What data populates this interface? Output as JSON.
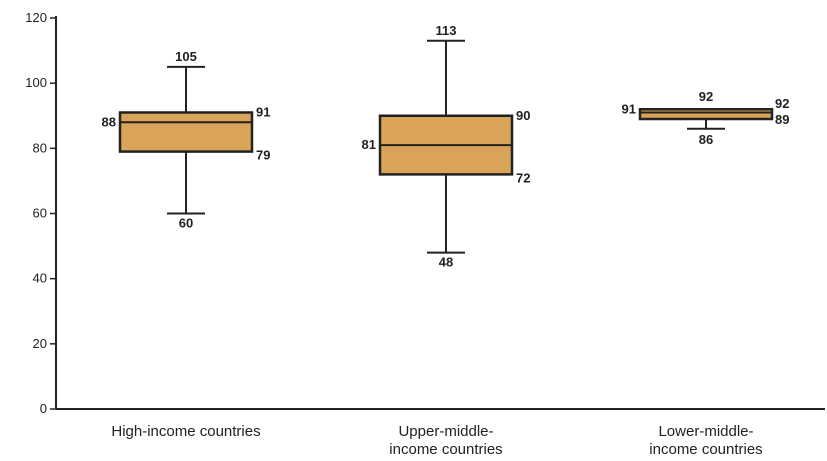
{
  "chart_data": {
    "type": "boxplot",
    "ylim": [
      0,
      120
    ],
    "yticks": [
      0,
      20,
      40,
      60,
      80,
      100,
      120
    ],
    "ytick_labels": [
      "0",
      "20",
      "40",
      "60",
      "80",
      "100",
      "120"
    ],
    "grid": false,
    "colors": {
      "box_fill": "#d9a35a",
      "box_stroke": "#222222",
      "whisker": "#222222"
    },
    "categories": [
      [
        "High-income countries"
      ],
      [
        "Upper-middle-",
        "income countries"
      ],
      [
        "Lower-middle-",
        "income countries"
      ]
    ],
    "boxes": [
      {
        "min": 60,
        "q1": 79,
        "median": 88,
        "q3": 91,
        "max": 105,
        "labels": {
          "min": "60",
          "q1": "79",
          "median": "88",
          "q3": "91",
          "max": "105"
        }
      },
      {
        "min": 48,
        "q1": 72,
        "median": 81,
        "q3": 90,
        "max": 113,
        "labels": {
          "min": "48",
          "q1": "72",
          "median": "81",
          "q3": "90",
          "max": "113"
        }
      },
      {
        "min": 86,
        "q1": 89,
        "median": 91,
        "q3": 92,
        "max": 92,
        "labels": {
          "min": "86",
          "q1": "89",
          "median": "91",
          "q3": "92",
          "max": "92"
        }
      }
    ]
  }
}
